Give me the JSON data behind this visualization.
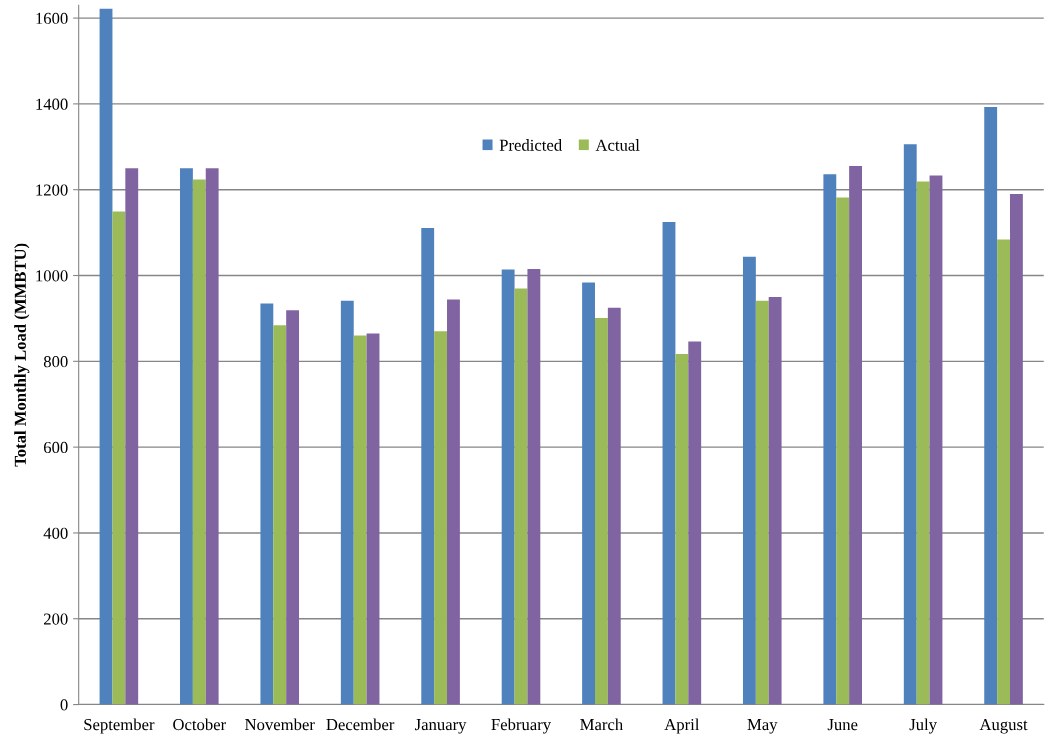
{
  "chart_data": {
    "type": "bar",
    "ylabel": "Total Monthly Load (MMBTU)",
    "categories": [
      "September",
      "October",
      "November",
      "December",
      "January",
      "February",
      "March",
      "April",
      "May",
      "June",
      "July",
      "August"
    ],
    "series": [
      {
        "name": "Predicted",
        "color": "#4f81bd",
        "values": [
          1622,
          1250,
          935,
          941,
          1111,
          1014,
          984,
          1125,
          1044,
          1236,
          1306,
          1393
        ]
      },
      {
        "name": "Actual",
        "color": "#9bbb59",
        "values": [
          1149,
          1224,
          884,
          860,
          870,
          970,
          901,
          817,
          941,
          1182,
          1219,
          1084
        ]
      },
      {
        "color": "#8064a2",
        "values": [
          1250,
          1250,
          919,
          865,
          944,
          1015,
          925,
          846,
          950,
          1255,
          1233,
          1190
        ]
      }
    ],
    "ylim": [
      0,
      1630
    ],
    "yticks": [
      0,
      200,
      400,
      600,
      800,
      1000,
      1200,
      1400,
      1600
    ],
    "grid": "y",
    "legend": "top"
  }
}
